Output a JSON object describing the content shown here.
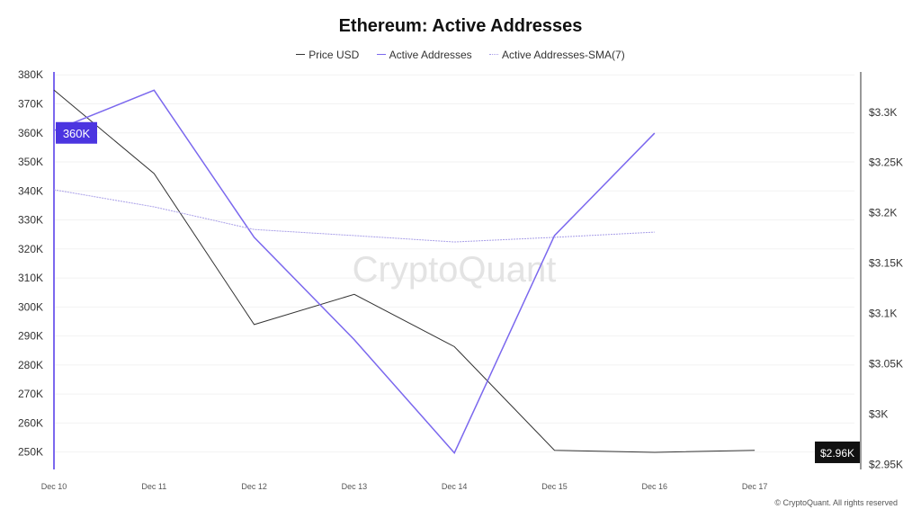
{
  "chart_data": {
    "type": "line",
    "title": "Ethereum: Active Addresses",
    "categories": [
      "Dec 10",
      "Dec 11",
      "Dec 12",
      "Dec 13",
      "Dec 14",
      "Dec 15",
      "Dec 16",
      "Dec 17"
    ],
    "series": [
      {
        "name": "Price USD",
        "axis": "right",
        "color": "#333333",
        "values": [
          3322,
          3239,
          3089,
          3119,
          3067,
          2964,
          2962,
          2964
        ]
      },
      {
        "name": "Active Addresses",
        "axis": "left",
        "color": "#7b68ee",
        "values": [
          360800,
          374700,
          324000,
          288700,
          249700,
          324600,
          359900,
          null
        ]
      },
      {
        "name": "Active Addresses-SMA(7)",
        "axis": "left",
        "color": "#a89ee8",
        "dashed": true,
        "values": [
          340400,
          334500,
          326700,
          324600,
          322400,
          324000,
          325800,
          null
        ]
      }
    ],
    "left_axis": {
      "ticks": [
        "250K",
        "260K",
        "270K",
        "280K",
        "290K",
        "300K",
        "310K",
        "320K",
        "330K",
        "340K",
        "350K",
        "360K",
        "370K",
        "380K"
      ],
      "tick_values": [
        250000,
        260000,
        270000,
        280000,
        290000,
        300000,
        310000,
        320000,
        330000,
        340000,
        350000,
        360000,
        370000,
        380000
      ],
      "range": [
        244000,
        381000
      ],
      "current_label": "360K",
      "current_value": 360000
    },
    "right_axis": {
      "ticks": [
        "$2.95K",
        "$3K",
        "$3.05K",
        "$3.1K",
        "$3.15K",
        "$3.2K",
        "$3.25K",
        "$3.3K"
      ],
      "tick_values": [
        2950,
        3000,
        3050,
        3100,
        3150,
        3200,
        3250,
        3300
      ],
      "range": [
        2945,
        3340
      ],
      "current_label": "$2.96K",
      "current_value": 2962
    },
    "grid": true,
    "legend": "top-center"
  },
  "watermark": "CryptoQuant",
  "copyright": "© CryptoQuant. All rights reserved"
}
